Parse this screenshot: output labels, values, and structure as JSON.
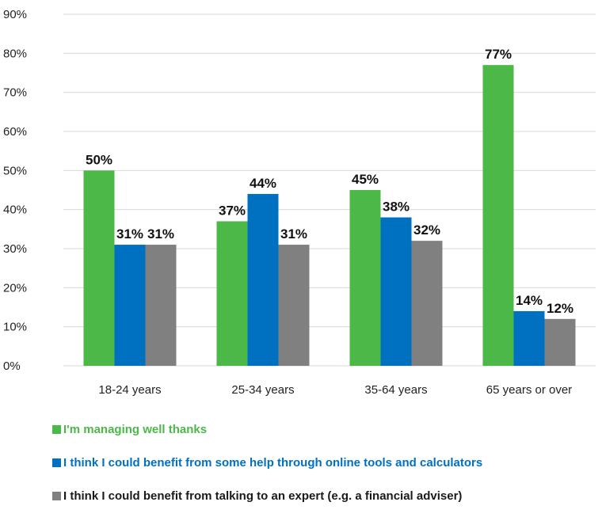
{
  "chart_data": {
    "type": "bar",
    "categories": [
      "18-24 years",
      "25-34 years",
      "35-64 years",
      "65 years or over"
    ],
    "series": [
      {
        "name": "I'm managing  well thanks",
        "values": [
          50,
          37,
          45,
          77
        ],
        "color": "#4cb848",
        "label_color": "#4cb848"
      },
      {
        "name": "I think I could benefit from some help through online tools and calculators",
        "values": [
          31,
          44,
          38,
          14
        ],
        "color": "#0070c0",
        "label_color": "#0070c0"
      },
      {
        "name": "I think I could benefit from talking to an expert (e.g. a financial adviser)",
        "values": [
          31,
          31,
          32,
          12
        ],
        "color": "#808080",
        "label_color": "#1a1a1a"
      }
    ],
    "data_labels": [
      [
        "50%",
        "37%",
        "45%",
        "77%"
      ],
      [
        "31%",
        "44%",
        "38%",
        "14%"
      ],
      [
        "31%",
        "31%",
        "32%",
        "12%"
      ]
    ],
    "y_ticks": [
      0,
      10,
      20,
      30,
      40,
      50,
      60,
      70,
      80,
      90
    ],
    "y_tick_labels": [
      "0%",
      "10%",
      "20%",
      "30%",
      "40%",
      "50%",
      "60%",
      "70%",
      "80%",
      "90%"
    ],
    "ylim": [
      0,
      90
    ],
    "grid": true,
    "legend_position": "bottom-left",
    "title": "",
    "xlabel": "",
    "ylabel": ""
  }
}
